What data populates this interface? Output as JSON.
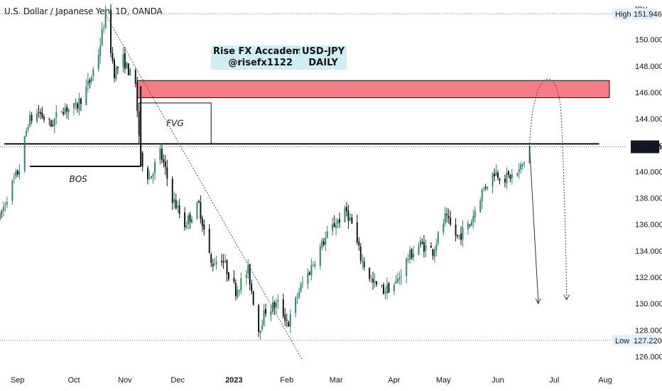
{
  "header": {
    "symbol_title": "U.S. Dollar / Japanese Yen, 1D, OANDA",
    "currency": "JPY"
  },
  "branding": {
    "line1": "Rise FX Accademy",
    "line2": "@risefx1122",
    "pair": "USD-JPY",
    "timeframe": "DAILY"
  },
  "colors": {
    "bull": "#2e8b57",
    "bear": "#131722",
    "supply_zone": "#f47c85",
    "axis_text": "#131722",
    "current_price_bg": "#131722"
  },
  "chart_data": {
    "type": "candlestick",
    "title": "U.S. Dollar / Japanese Yen, 1D, OANDA",
    "y_axis": {
      "ticks": [
        "126.000",
        "128.000",
        "130.000",
        "132.000",
        "134.000",
        "136.000",
        "138.000",
        "140.000",
        "142.000",
        "144.000",
        "146.000",
        "148.000",
        "150.000"
      ],
      "ylim": [
        125.0,
        153.0
      ]
    },
    "x_axis": {
      "ticks": [
        "Sep",
        "Oct",
        "Nov",
        "Dec",
        "2023",
        "Feb",
        "Mar",
        "Apr",
        "May",
        "Jun",
        "Jul",
        "Aug"
      ],
      "xlim": [
        "2022-08-22",
        "2023-08-05"
      ]
    },
    "high": {
      "label": "High",
      "value": 151.946
    },
    "low": {
      "label": "Low",
      "value": 127.22
    },
    "current_price": {
      "value": 141.88,
      "label": "141.880"
    },
    "price_path": [
      [
        "2022-08-22",
        136.5
      ],
      [
        "2022-08-27",
        138.5
      ],
      [
        "2022-09-02",
        140.2
      ],
      [
        "2022-09-07",
        143.8
      ],
      [
        "2022-09-13",
        144.5
      ],
      [
        "2022-09-20",
        143.5
      ],
      [
        "2022-09-26",
        144.8
      ],
      [
        "2022-10-04",
        144.8
      ],
      [
        "2022-10-12",
        146.8
      ],
      [
        "2022-10-17",
        149.0
      ],
      [
        "2022-10-21",
        151.9
      ],
      [
        "2022-10-26",
        147.5
      ],
      [
        "2022-10-31",
        148.5
      ],
      [
        "2022-11-07",
        146.5
      ],
      [
        "2022-11-10",
        141.0
      ],
      [
        "2022-11-15",
        139.5
      ],
      [
        "2022-11-21",
        141.5
      ],
      [
        "2022-11-28",
        138.0
      ],
      [
        "2022-12-05",
        136.0
      ],
      [
        "2022-12-13",
        137.5
      ],
      [
        "2022-12-20",
        133.0
      ],
      [
        "2022-12-26",
        133.5
      ],
      [
        "2023-01-03",
        131.0
      ],
      [
        "2023-01-10",
        132.5
      ],
      [
        "2023-01-16",
        128.0
      ],
      [
        "2023-01-20",
        129.5
      ],
      [
        "2023-01-27",
        130.0
      ],
      [
        "2023-02-02",
        128.5
      ],
      [
        "2023-02-08",
        131.0
      ],
      [
        "2023-02-14",
        132.5
      ],
      [
        "2023-02-21",
        134.5
      ],
      [
        "2023-02-28",
        136.0
      ],
      [
        "2023-03-07",
        137.0
      ],
      [
        "2023-03-10",
        136.0
      ],
      [
        "2023-03-15",
        133.5
      ],
      [
        "2023-03-22",
        131.5
      ],
      [
        "2023-03-28",
        131.0
      ],
      [
        "2023-04-04",
        131.5
      ],
      [
        "2023-04-11",
        133.5
      ],
      [
        "2023-04-18",
        134.5
      ],
      [
        "2023-04-25",
        134.0
      ],
      [
        "2023-05-02",
        136.5
      ],
      [
        "2023-05-09",
        135.0
      ],
      [
        "2023-05-16",
        136.0
      ],
      [
        "2023-05-23",
        138.5
      ],
      [
        "2023-05-30",
        140.0
      ],
      [
        "2023-06-05",
        139.5
      ],
      [
        "2023-06-12",
        139.8
      ],
      [
        "2023-06-16",
        140.8
      ],
      [
        "2023-06-19",
        141.9
      ]
    ],
    "annotations": {
      "supply_zone": {
        "from": "2022-11-08",
        "to": "2023-08-05",
        "low": 145.6,
        "high": 146.9
      },
      "fvg": {
        "label": "FVG",
        "from": "2022-11-09",
        "to": "2022-12-20",
        "low": 142.1,
        "high": 145.2
      },
      "bos": {
        "label": "BOS",
        "from": "2022-09-08",
        "to": "2022-11-10",
        "price": 140.4
      },
      "structure_level": {
        "from": "2022-08-22",
        "to": "2023-07-31",
        "price": 142.1
      },
      "trendline": {
        "from": [
          "2022-10-21",
          151.9
        ],
        "to": [
          "2023-02-10",
          125.7
        ]
      },
      "projection_down": {
        "from": [
          "2023-06-19",
          141.9
        ],
        "to": [
          "2023-06-24",
          130.0
        ]
      },
      "projection_retest": [
        [
          "2023-06-19",
          141.9
        ],
        [
          "2023-06-28",
          146.6
        ],
        [
          "2023-07-10",
          130.3
        ]
      ]
    }
  }
}
